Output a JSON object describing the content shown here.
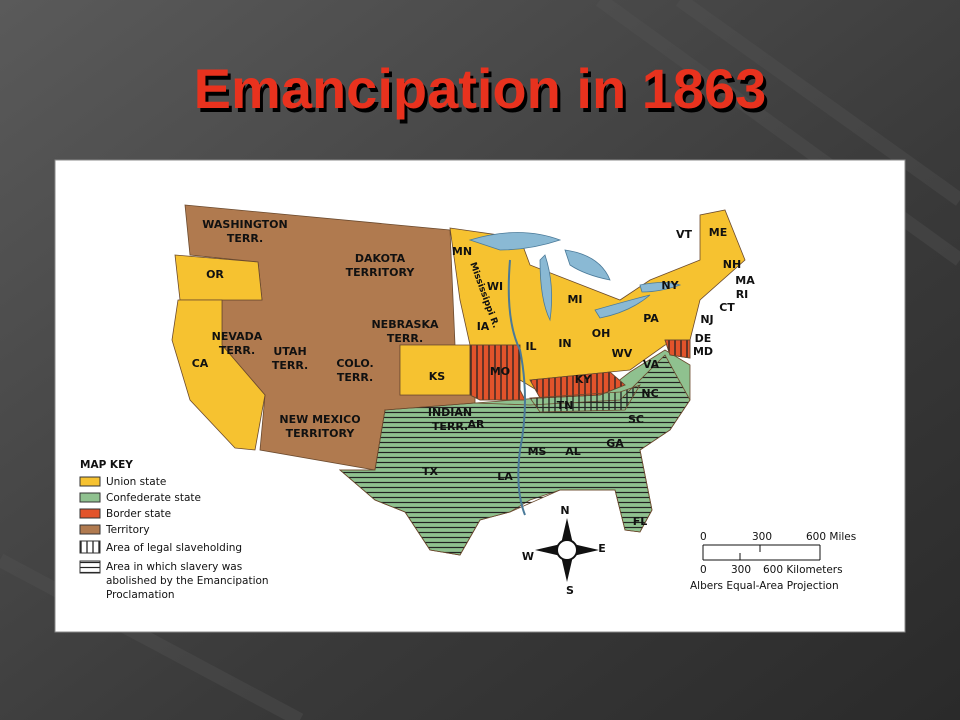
{
  "title": "Emancipation in 1863",
  "regions": [
    [
      "WASHINGTON",
      "TERR."
    ],
    [
      "DAKOTA",
      "TERRITORY"
    ],
    [
      "OR"
    ],
    [
      "NEVADA",
      "TERR."
    ],
    [
      "UTAH",
      "TERR."
    ],
    [
      "COLO.",
      "TERR."
    ],
    [
      "NEBRASKA",
      "TERR."
    ],
    [
      "CA"
    ],
    [
      "KS"
    ],
    [
      "NEW MEXICO",
      "TERRITORY"
    ],
    [
      "INDIAN",
      "TERR."
    ],
    [
      "MN"
    ],
    [
      "WI"
    ],
    [
      "IA"
    ],
    [
      "MI"
    ],
    [
      "IL"
    ],
    [
      "IN"
    ],
    [
      "OH"
    ],
    [
      "PA"
    ],
    [
      "NY"
    ],
    [
      "WV"
    ],
    [
      "MO"
    ],
    [
      "KY"
    ],
    [
      "TN"
    ],
    [
      "AR"
    ],
    [
      "MS"
    ],
    [
      "AL"
    ],
    [
      "GA"
    ],
    [
      "SC"
    ],
    [
      "NC"
    ],
    [
      "VA"
    ],
    [
      "LA"
    ],
    [
      "TX"
    ],
    [
      "FL"
    ],
    [
      "VT"
    ],
    [
      "ME"
    ],
    [
      "NH"
    ],
    [
      "MA"
    ],
    [
      "RI"
    ],
    [
      "CT"
    ],
    [
      "NJ"
    ],
    [
      "DE"
    ],
    [
      "MD"
    ]
  ],
  "river": "Mississippi R.",
  "key": {
    "title": "MAP KEY",
    "items": [
      "Union state",
      "Confederate state",
      "Border state",
      "Territory",
      "Area of legal slaveholding",
      [
        "Area in which slavery was",
        "abolished by the Emancipation",
        "Proclamation"
      ]
    ]
  },
  "compass": {
    "n": "N",
    "s": "S",
    "e": "E",
    "w": "W"
  },
  "scale": {
    "miles": [
      "0",
      "300",
      "600 Miles"
    ],
    "km": [
      "0",
      "300",
      "600 Kilometers"
    ],
    "projection": "Albers Equal-Area Projection"
  }
}
